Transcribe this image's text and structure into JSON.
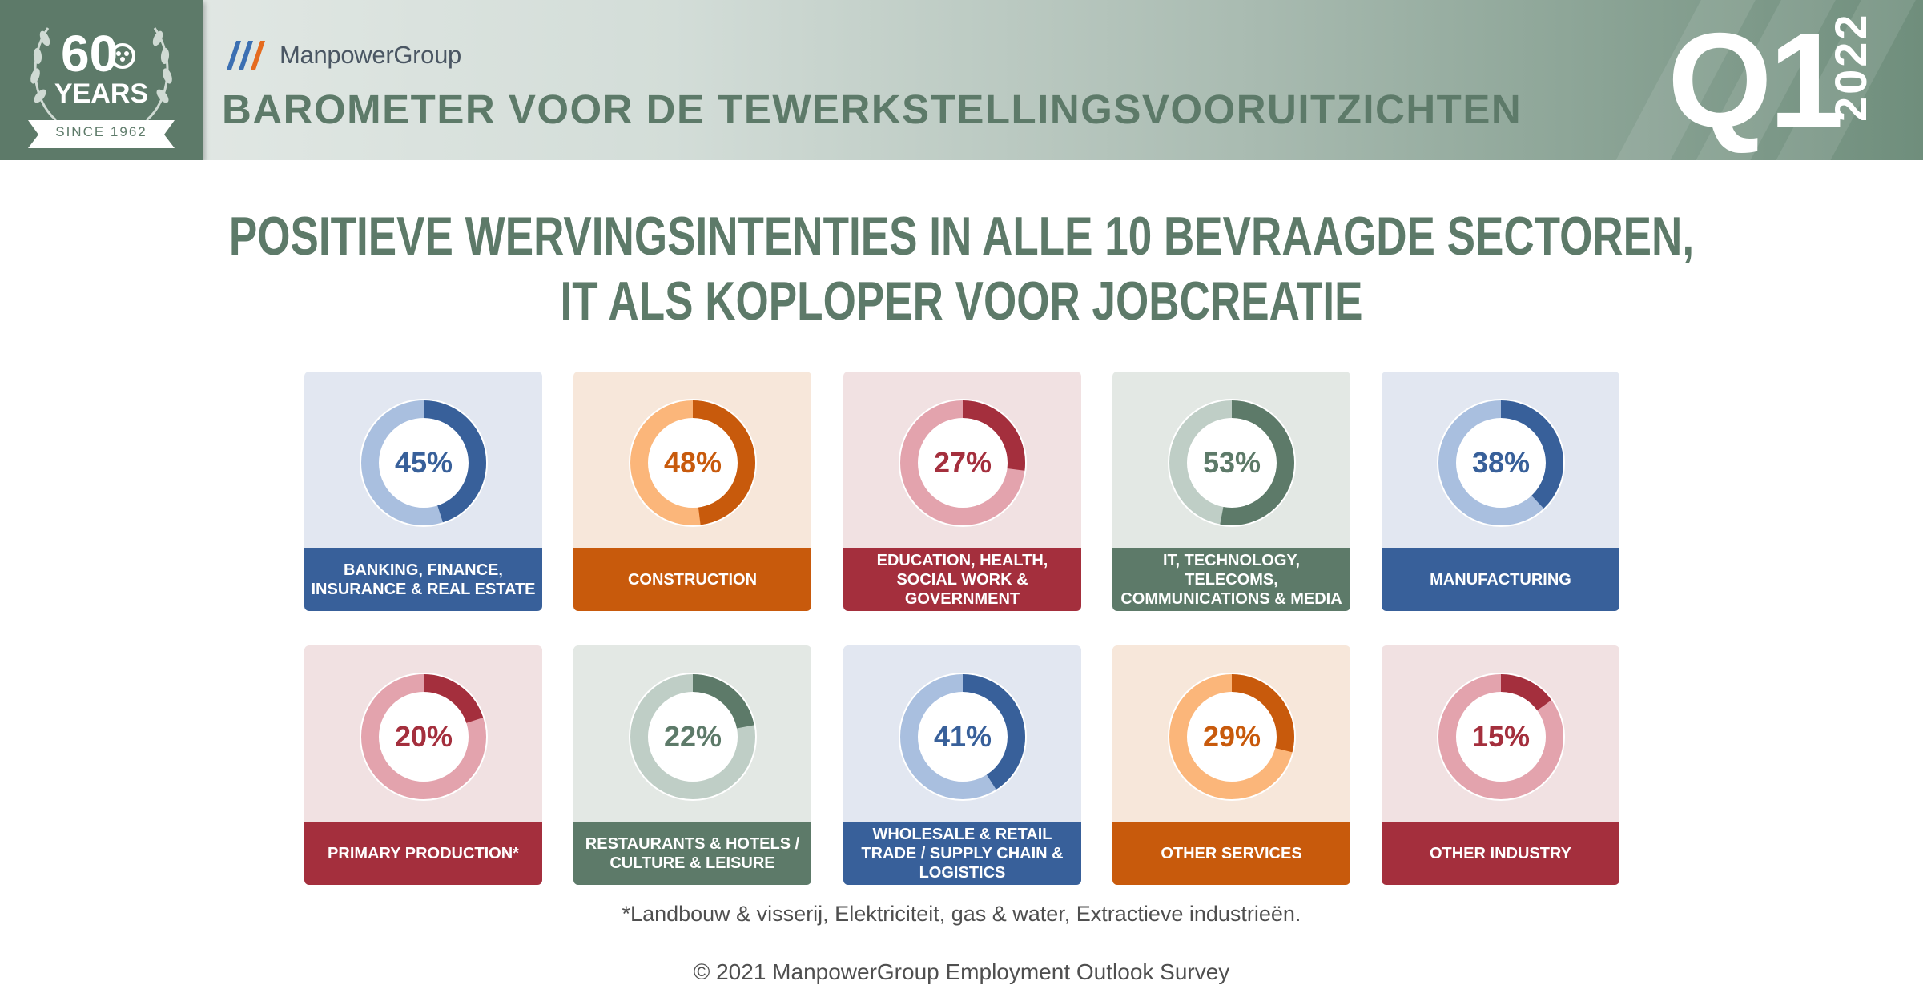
{
  "header": {
    "badge_number": "60",
    "badge_word": "YEARS",
    "badge_since": "SINCE 1962",
    "brand": "ManpowerGroup",
    "title": "BAROMETER VOOR DE TEWERKSTELLINGSVOORUITZICHTEN",
    "quarter": "Q1",
    "year": "2022"
  },
  "headline": {
    "line1": "POSITIEVE WERVINGSINTENTIES IN ALLE 10 BEVRAAGDE SECTOREN,",
    "line2": "IT ALS KOPLOPER VOOR JOBCREATIE"
  },
  "chart_data": {
    "type": "pie",
    "variant": "donut-grid",
    "categories": [
      "BANKING, FINANCE, INSURANCE & REAL ESTATE",
      "CONSTRUCTION",
      "EDUCATION, HEALTH, SOCIAL WORK & GOVERNMENT",
      "IT, TECHNOLOGY, TELECOMS, COMMUNICATIONS & MEDIA",
      "MANUFACTURING",
      "PRIMARY PRODUCTION*",
      "RESTAURANTS & HOTELS / CULTURE & LEISURE",
      "WHOLESALE & RETAIL TRADE / SUPPLY CHAIN & LOGISTICS",
      "OTHER SERVICES",
      "OTHER INDUSTRY"
    ],
    "values": [
      45,
      48,
      27,
      53,
      38,
      20,
      22,
      41,
      29,
      15
    ],
    "value_labels": [
      "45%",
      "48%",
      "27%",
      "53%",
      "38%",
      "20%",
      "22%",
      "41%",
      "29%",
      "15%"
    ],
    "label_lines": [
      [
        "BANKING, FINANCE,",
        "INSURANCE & REAL ESTATE"
      ],
      [
        "CONSTRUCTION"
      ],
      [
        "EDUCATION, HEALTH,",
        "SOCIAL WORK &",
        "GOVERNMENT"
      ],
      [
        "IT, TECHNOLOGY,",
        "TELECOMS,",
        "COMMUNICATIONS & MEDIA"
      ],
      [
        "MANUFACTURING"
      ],
      [
        "PRIMARY PRODUCTION*"
      ],
      [
        "RESTAURANTS & HOTELS /",
        "CULTURE & LEISURE"
      ],
      [
        "WHOLESALE & RETAIL",
        "TRADE / SUPPLY CHAIN &",
        "LOGISTICS"
      ],
      [
        "OTHER SERVICES"
      ],
      [
        "OTHER INDUSTRY"
      ]
    ],
    "ylim": [
      0,
      100
    ],
    "themes": [
      {
        "dark": "#38609a",
        "light": "#a9bfdf",
        "bg": "#e2e7f1"
      },
      {
        "dark": "#c85a0c",
        "light": "#fbb67a",
        "bg": "#f7e7da"
      },
      {
        "dark": "#a42f3d",
        "light": "#e3a3ad",
        "bg": "#f1e1e2"
      },
      {
        "dark": "#5d7a69",
        "light": "#bfcec6",
        "bg": "#e3e8e4"
      },
      {
        "dark": "#38609a",
        "light": "#a9bfdf",
        "bg": "#e2e7f1"
      },
      {
        "dark": "#a42f3d",
        "light": "#e3a3ad",
        "bg": "#f1e1e2"
      },
      {
        "dark": "#5d7a69",
        "light": "#bfcec6",
        "bg": "#e3e8e4"
      },
      {
        "dark": "#38609a",
        "light": "#a9bfdf",
        "bg": "#e2e7f1"
      },
      {
        "dark": "#c85a0c",
        "light": "#fbb67a",
        "bg": "#f7e7da"
      },
      {
        "dark": "#a42f3d",
        "light": "#e3a3ad",
        "bg": "#f1e1e2"
      }
    ]
  },
  "footnote": "*Landbouw & visserij, Elektriciteit, gas & water, Extractieve industrieën.",
  "copyright": "© 2021 ManpowerGroup Employment Outlook Survey"
}
